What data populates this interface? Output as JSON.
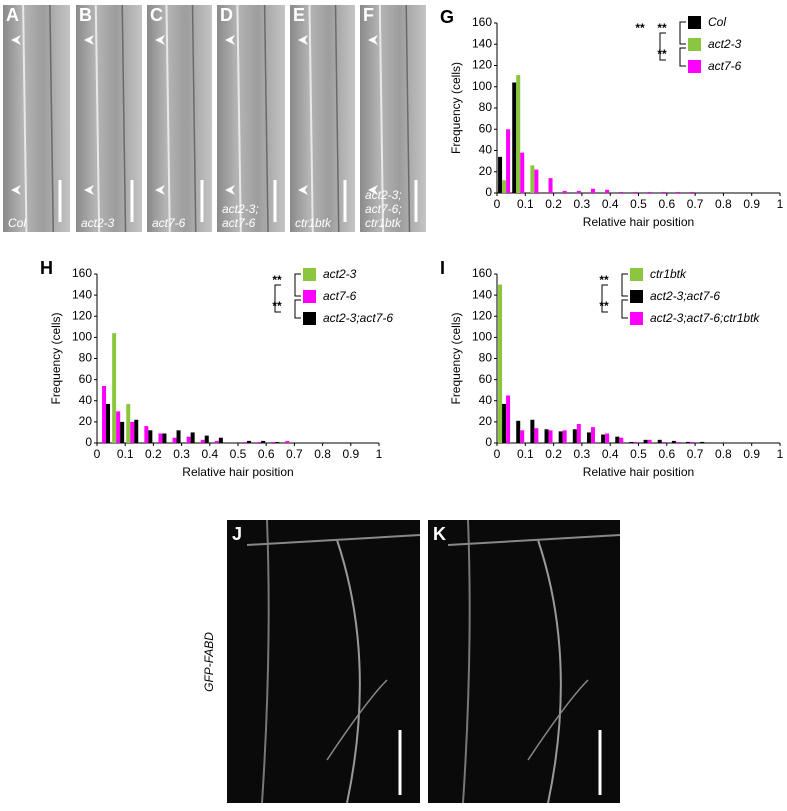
{
  "chart_data": [
    {
      "type": "bar",
      "label": "G",
      "xlabel": "Relative hair position",
      "ylabel": "Frequency (cells)",
      "x": [
        0.025,
        0.075,
        0.125,
        0.175,
        0.225,
        0.275,
        0.325,
        0.375,
        0.425,
        0.475,
        0.525,
        0.575,
        0.625,
        0.675,
        0.725,
        0.775,
        0.825,
        0.875,
        0.925,
        0.975
      ],
      "series": [
        {
          "name": "Col",
          "color": "#000000",
          "values": [
            34,
            104,
            0,
            0,
            0,
            0,
            0,
            0,
            0,
            0,
            0,
            0,
            0,
            0,
            0,
            0,
            0,
            0,
            0,
            0
          ]
        },
        {
          "name": "act2-3",
          "color": "#8cc63f",
          "values": [
            12,
            111,
            26,
            0,
            0,
            0,
            0,
            0,
            0,
            0,
            0,
            0,
            0,
            0,
            0,
            0,
            0,
            0,
            0,
            0
          ]
        },
        {
          "name": "act7-6",
          "color": "#ff00ff",
          "values": [
            60,
            38,
            22,
            14,
            2,
            2,
            4,
            3,
            1,
            1,
            1,
            1,
            1,
            1,
            0,
            0,
            0,
            0,
            0,
            0
          ]
        }
      ],
      "xlim": [
        0,
        1
      ],
      "xticks": [
        0,
        0.1,
        0.2,
        0.3,
        0.4,
        0.5,
        0.6,
        0.7,
        0.8,
        0.9,
        1
      ],
      "ylim": [
        0,
        160
      ],
      "yticks": [
        0,
        20,
        40,
        60,
        80,
        100,
        120,
        140,
        160
      ],
      "annotations": [
        "**",
        "**",
        "**"
      ]
    },
    {
      "type": "bar",
      "label": "H",
      "xlabel": "Relative hair position",
      "ylabel": "Frequency (cells)",
      "x": [
        0.025,
        0.075,
        0.125,
        0.175,
        0.225,
        0.275,
        0.325,
        0.375,
        0.425,
        0.475,
        0.525,
        0.575,
        0.625,
        0.675,
        0.725,
        0.775,
        0.825,
        0.875,
        0.925,
        0.975
      ],
      "series": [
        {
          "name": "act2-3",
          "color": "#8cc63f",
          "values": [
            0,
            104,
            37,
            0,
            0,
            0,
            0,
            0,
            0,
            0,
            0,
            0,
            0,
            0,
            0,
            0,
            0,
            0,
            0,
            0
          ]
        },
        {
          "name": "act7-6",
          "color": "#ff00ff",
          "values": [
            54,
            30,
            20,
            16,
            9,
            5,
            6,
            3,
            2,
            0,
            1,
            1,
            1,
            2,
            0,
            0,
            0,
            0,
            0,
            0
          ]
        },
        {
          "name": "act2-3;act7-6",
          "color": "#000000",
          "values": [
            37,
            20,
            22,
            12,
            9,
            12,
            10,
            7,
            5,
            0,
            2,
            2,
            1,
            0,
            0,
            0,
            0,
            0,
            0,
            0
          ]
        }
      ],
      "xlim": [
        0,
        1
      ],
      "xticks": [
        0,
        0.1,
        0.2,
        0.3,
        0.4,
        0.5,
        0.6,
        0.7,
        0.8,
        0.9,
        1
      ],
      "ylim": [
        0,
        160
      ],
      "yticks": [
        0,
        20,
        40,
        60,
        80,
        100,
        120,
        140,
        160
      ],
      "annotations": [
        "**",
        "**"
      ]
    },
    {
      "type": "bar",
      "label": "I",
      "xlabel": "Relative hair position",
      "ylabel": "Frequency (cells)",
      "x": [
        0.025,
        0.075,
        0.125,
        0.175,
        0.225,
        0.275,
        0.325,
        0.375,
        0.425,
        0.475,
        0.525,
        0.575,
        0.625,
        0.675,
        0.725,
        0.775,
        0.825,
        0.875,
        0.925,
        0.975
      ],
      "series": [
        {
          "name": "ctr1btk",
          "color": "#8cc63f",
          "values": [
            150,
            0,
            0,
            0,
            0,
            0,
            0,
            0,
            0,
            0,
            0,
            0,
            0,
            0,
            0,
            0,
            0,
            0,
            0,
            0
          ]
        },
        {
          "name": "act2-3;act7-6",
          "color": "#000000",
          "values": [
            37,
            21,
            22,
            13,
            11,
            13,
            10,
            8,
            6,
            1,
            3,
            3,
            2,
            1,
            1,
            0,
            0,
            0,
            0,
            0
          ]
        },
        {
          "name": "act2-3;act7-6;ctr1btk",
          "color": "#ff00ff",
          "values": [
            45,
            12,
            14,
            12,
            12,
            18,
            15,
            9,
            5,
            1,
            3,
            1,
            1,
            1,
            0,
            0,
            0,
            0,
            0,
            0
          ]
        }
      ],
      "xlim": [
        0,
        1
      ],
      "xticks": [
        0,
        0.1,
        0.2,
        0.3,
        0.4,
        0.5,
        0.6,
        0.7,
        0.8,
        0.9,
        1
      ],
      "ylim": [
        0,
        160
      ],
      "yticks": [
        0,
        20,
        40,
        60,
        80,
        100,
        120,
        140,
        160
      ],
      "annotations": [
        "**",
        "**"
      ]
    }
  ],
  "micrographs": [
    {
      "letter": "A",
      "caption": [
        "Col"
      ]
    },
    {
      "letter": "B",
      "caption": [
        "act2-3"
      ]
    },
    {
      "letter": "C",
      "caption": [
        "act7-6"
      ]
    },
    {
      "letter": "D",
      "caption": [
        "act2-3;",
        "act7-6"
      ]
    },
    {
      "letter": "E",
      "caption": [
        "ctr1btk"
      ]
    },
    {
      "letter": "F",
      "caption": [
        "act2-3;",
        "act7-6;",
        "ctr1btk"
      ]
    }
  ],
  "confocal": {
    "row_label": "GFP-FABD",
    "panels": [
      {
        "letter": "J"
      },
      {
        "letter": "K"
      }
    ]
  }
}
